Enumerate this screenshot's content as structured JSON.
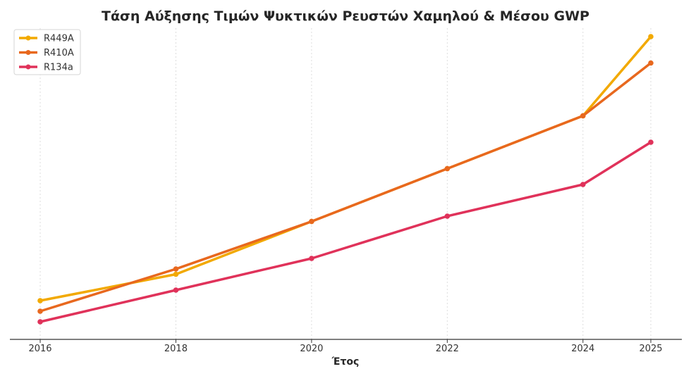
{
  "chart_data": {
    "type": "line",
    "title": "Τάση Αύξησης Τιμών Ψυκτικών Ρευστών Χαμηλού & Μέσου GWP",
    "xlabel": "Έτος",
    "ylabel": "",
    "x": [
      2016,
      2018,
      2020,
      2022,
      2024,
      2025
    ],
    "x_ticks": [
      2016,
      2018,
      2020,
      2022,
      2024,
      2025
    ],
    "ylim": [
      0,
      100
    ],
    "grid": "vertical dashed",
    "legend": "top-left",
    "series": [
      {
        "name": "R449A",
        "color": "#f2a900",
        "values": [
          12.0,
          22.0,
          42.0,
          62.0,
          82.0,
          112.0
        ]
      },
      {
        "name": "R410A",
        "color": "#e8681e",
        "values": [
          8.0,
          24.0,
          42.0,
          62.0,
          82.0,
          102.0
        ]
      },
      {
        "name": "R134a",
        "color": "#e0325a",
        "values": [
          4.0,
          16.0,
          28.0,
          44.0,
          56.0,
          72.0
        ]
      }
    ]
  }
}
